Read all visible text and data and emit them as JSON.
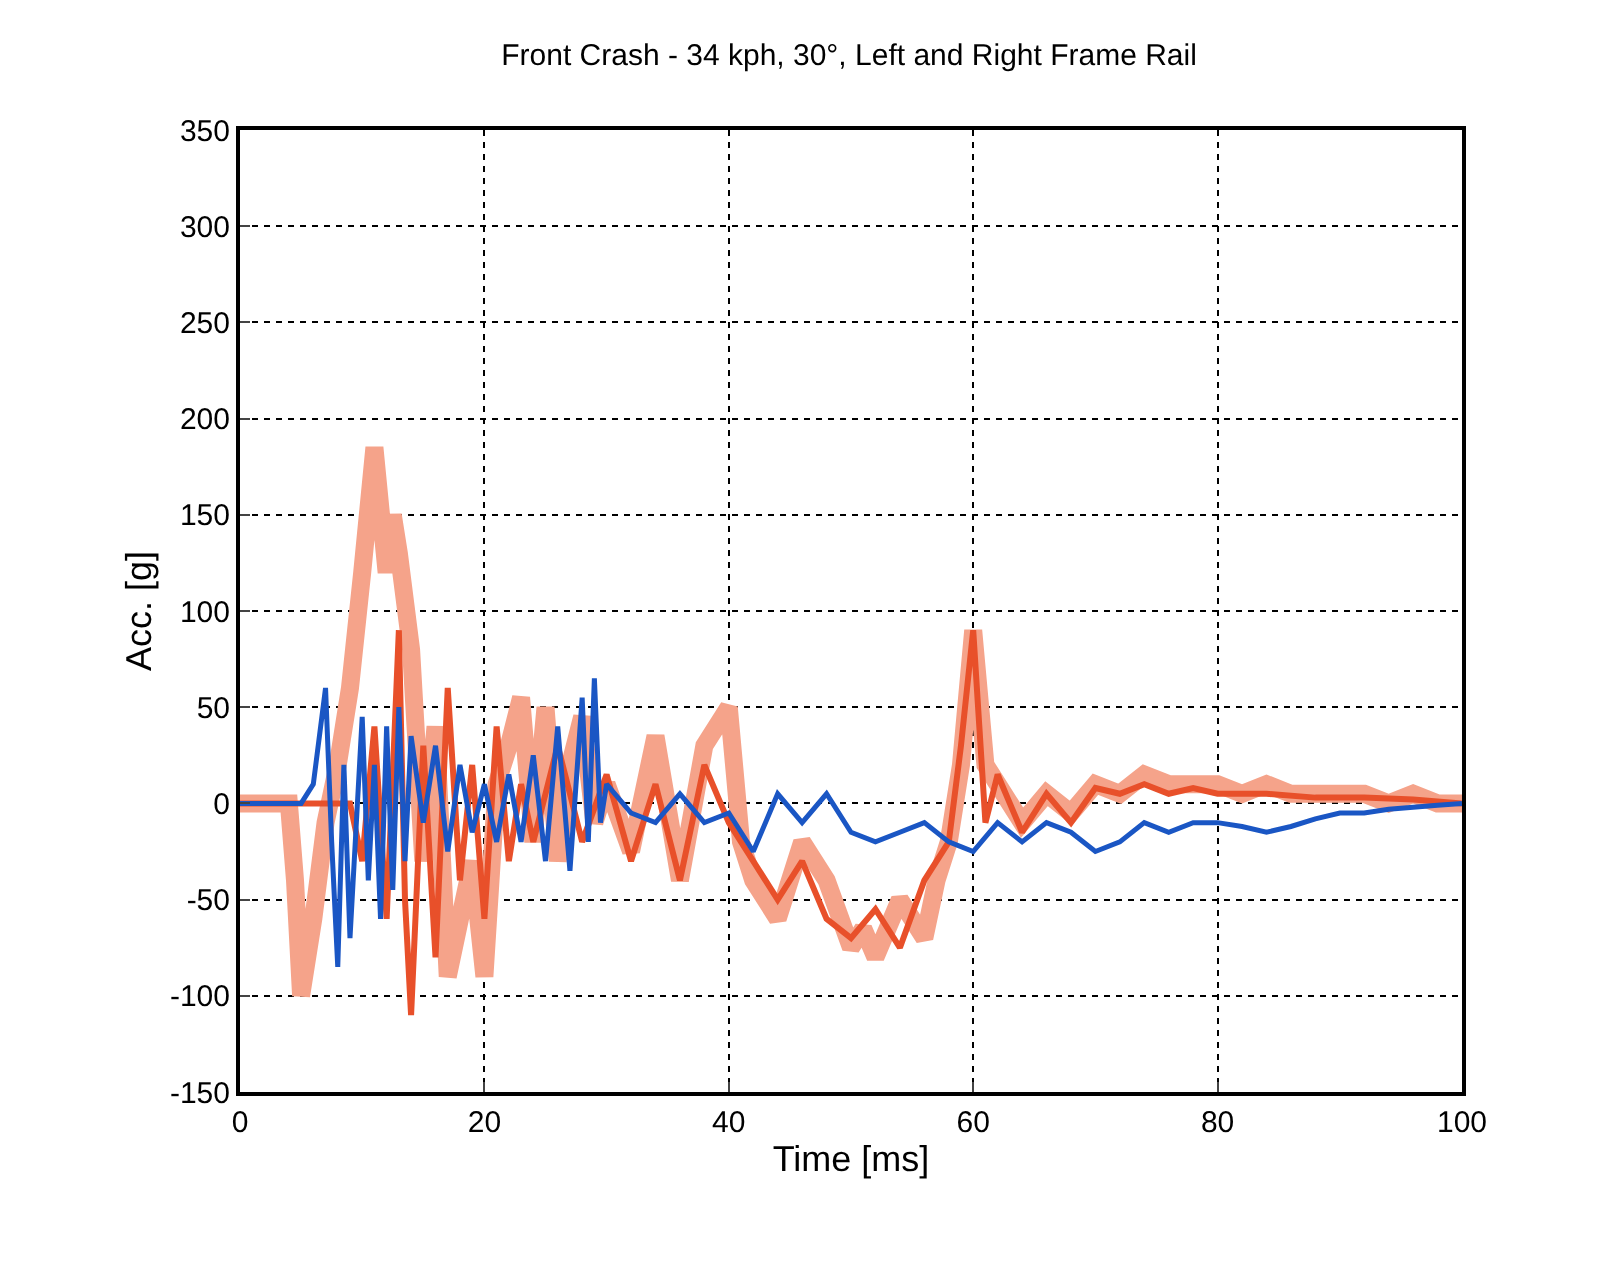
{
  "chart_data": {
    "type": "line",
    "title": "Front Crash - 34 kph, 30°, Left and Right Frame Rail",
    "xlabel": "Time [ms]",
    "ylabel": "Acc. [g]",
    "xlim": [
      0,
      100
    ],
    "ylim": [
      -150,
      350
    ],
    "xticks": [
      0,
      20,
      40,
      60,
      80,
      100
    ],
    "yticks": [
      -150,
      -100,
      -50,
      0,
      50,
      100,
      150,
      200,
      250,
      300,
      350
    ],
    "grid": true,
    "series": [
      {
        "color": "#f5a38a",
        "x": [
          0,
          4,
          4.5,
          5,
          6,
          7,
          8,
          9,
          10,
          11,
          12,
          12.5,
          13,
          14,
          15,
          16,
          17,
          18,
          19,
          20,
          21,
          22,
          23,
          24,
          25,
          26,
          27,
          28,
          29,
          30,
          32,
          34,
          36,
          38,
          40,
          41,
          42,
          44,
          46,
          48,
          50,
          51,
          52,
          54,
          55,
          56,
          57,
          58,
          59,
          60,
          61,
          62,
          64,
          66,
          68,
          70,
          72,
          74,
          76,
          78,
          80,
          82,
          84,
          86,
          88,
          90,
          92,
          94,
          96,
          98,
          100
        ],
        "values": [
          0,
          0,
          -40,
          -100,
          -60,
          -10,
          20,
          60,
          120,
          185,
          120,
          150,
          130,
          80,
          -30,
          40,
          -90,
          -60,
          -30,
          -90,
          10,
          30,
          55,
          -20,
          50,
          -30,
          20,
          45,
          -10,
          10,
          -25,
          35,
          -40,
          30,
          50,
          -20,
          -40,
          -60,
          -20,
          -40,
          -75,
          -65,
          -80,
          -50,
          -60,
          -70,
          -40,
          -20,
          20,
          90,
          20,
          10,
          -10,
          5,
          -5,
          10,
          5,
          15,
          10,
          10,
          10,
          5,
          10,
          5,
          5,
          5,
          5,
          0,
          5,
          0,
          0
        ]
      },
      {
        "color": "#e8502a",
        "x": [
          0,
          9,
          10,
          11,
          12,
          13,
          13.5,
          14,
          15,
          16,
          17,
          18,
          19,
          20,
          21,
          22,
          23,
          24,
          26,
          28,
          30,
          32,
          34,
          36,
          38,
          40,
          42,
          44,
          46,
          48,
          50,
          52,
          54,
          56,
          58,
          59,
          60,
          60.5,
          61,
          62,
          64,
          66,
          68,
          70,
          72,
          74,
          76,
          78,
          80,
          84,
          88,
          92,
          96,
          100
        ],
        "values": [
          0,
          0,
          -30,
          40,
          -60,
          90,
          -50,
          -110,
          30,
          -80,
          60,
          -40,
          20,
          -60,
          40,
          -30,
          10,
          -20,
          30,
          -20,
          15,
          -30,
          10,
          -40,
          20,
          -10,
          -30,
          -50,
          -30,
          -60,
          -70,
          -55,
          -75,
          -40,
          -20,
          30,
          90,
          40,
          -10,
          15,
          -15,
          5,
          -10,
          8,
          5,
          10,
          5,
          8,
          5,
          5,
          3,
          3,
          2,
          0
        ]
      },
      {
        "color": "#1a56c4",
        "x": [
          0,
          5,
          6,
          7,
          7.5,
          8,
          8.5,
          9,
          10,
          10.5,
          11,
          11.5,
          12,
          12.5,
          13,
          13.5,
          14,
          15,
          16,
          17,
          18,
          19,
          20,
          21,
          22,
          23,
          24,
          25,
          26,
          27,
          28,
          28.5,
          29,
          29.5,
          30,
          32,
          34,
          36,
          38,
          40,
          42,
          44,
          46,
          48,
          50,
          52,
          54,
          56,
          58,
          60,
          62,
          64,
          66,
          68,
          70,
          72,
          74,
          76,
          78,
          80,
          82,
          84,
          86,
          88,
          90,
          92,
          94,
          96,
          98,
          100
        ],
        "values": [
          0,
          0,
          10,
          60,
          -20,
          -85,
          20,
          -70,
          45,
          -40,
          20,
          -60,
          40,
          -45,
          50,
          -30,
          35,
          -10,
          30,
          -25,
          20,
          -15,
          10,
          -20,
          15,
          -20,
          25,
          -30,
          40,
          -35,
          55,
          -20,
          65,
          -10,
          10,
          -5,
          -10,
          5,
          -10,
          -5,
          -25,
          5,
          -10,
          5,
          -15,
          -20,
          -15,
          -10,
          -20,
          -25,
          -10,
          -20,
          -10,
          -15,
          -25,
          -20,
          -10,
          -15,
          -10,
          -10,
          -12,
          -15,
          -12,
          -8,
          -5,
          -5,
          -3,
          -2,
          -1,
          0
        ]
      }
    ]
  }
}
